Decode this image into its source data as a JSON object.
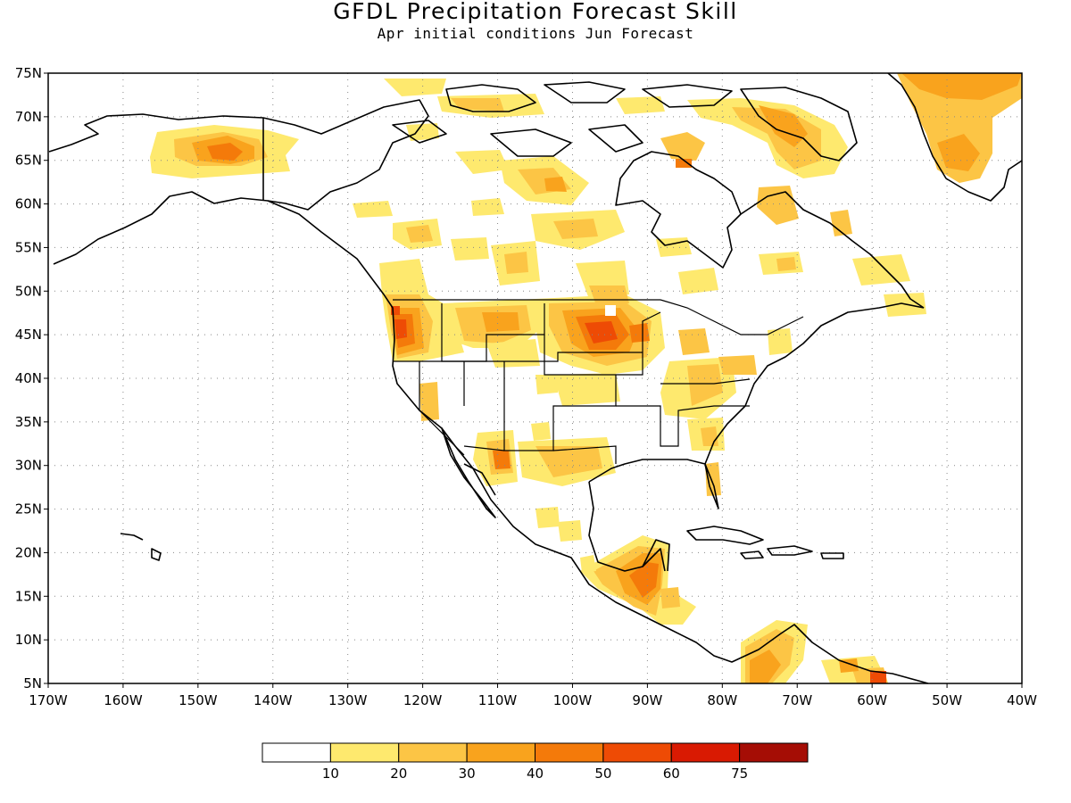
{
  "title": "GFDL Precipitation Forecast Skill",
  "subtitle": "Apr initial conditions   Jun Forecast",
  "map": {
    "projection": "lat-lon",
    "lon_range": [
      -170,
      -40
    ],
    "lat_range": [
      5,
      75
    ],
    "gridlines": "dotted",
    "lat_ticks": [
      "5N",
      "10N",
      "15N",
      "20N",
      "25N",
      "30N",
      "35N",
      "40N",
      "45N",
      "50N",
      "55N",
      "60N",
      "65N",
      "70N",
      "75N"
    ],
    "lon_ticks": [
      "170W",
      "160W",
      "150W",
      "140W",
      "130W",
      "120W",
      "110W",
      "100W",
      "90W",
      "80W",
      "70W",
      "60W",
      "50W",
      "40W"
    ]
  },
  "colorbar": {
    "labels": [
      "10",
      "20",
      "30",
      "40",
      "50",
      "60",
      "75"
    ],
    "colors": [
      "#ffffff",
      "#fee96e",
      "#fcc545",
      "#f9a31d",
      "#f47a0a",
      "#ee4b05",
      "#d91a02",
      "#a50d05"
    ]
  },
  "skill_regions": [
    {
      "name": "alaska",
      "lon": -146,
      "lat": 65.5,
      "level": 4
    },
    {
      "name": "oregon-coast",
      "lon": -123,
      "lat": 44,
      "level": 5
    },
    {
      "name": "northern-plains",
      "lon": -98,
      "lat": 45.5,
      "level": 5
    },
    {
      "name": "central-america",
      "lon": -89,
      "lat": 17.5,
      "level": 4
    },
    {
      "name": "texas-mexico",
      "lon": -109,
      "lat": 30.5,
      "level": 4
    },
    {
      "name": "labrador",
      "lon": -70,
      "lat": 67,
      "level": 3
    },
    {
      "name": "greenland",
      "lon": -52,
      "lat": 70,
      "level": 3
    },
    {
      "name": "hudson-area",
      "lon": -85,
      "lat": 65,
      "level": 4
    },
    {
      "name": "colombia",
      "lon": -74,
      "lat": 6.5,
      "level": 3
    },
    {
      "name": "venezuela",
      "lon": -60,
      "lat": 6,
      "level": 4
    }
  ]
}
